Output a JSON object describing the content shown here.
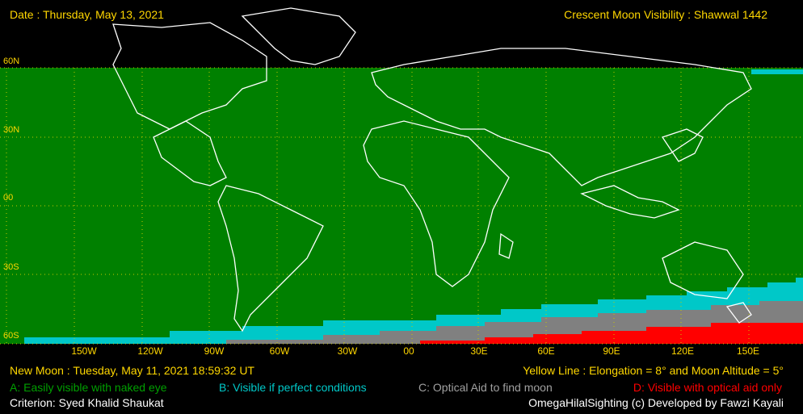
{
  "header": {
    "date": "Date : Thursday, May 13, 2021",
    "title": "Crescent Moon Visibility : Shawwal  1442"
  },
  "map": {
    "lat_labels": [
      "60N",
      "30N",
      "00",
      "30S",
      "60S"
    ],
    "lon_labels": [
      "150W",
      "120W",
      "90W",
      "60W",
      "30W",
      "00",
      "30E",
      "60E",
      "90E",
      "120E",
      "150E"
    ],
    "colors": {
      "zone_a": "#008000",
      "zone_b": "#00c8c8",
      "zone_c": "#808080",
      "zone_d": "#ff0000",
      "grid": "#c8c800",
      "coast": "#ffffff"
    }
  },
  "footer": {
    "new_moon": "New Moon : Tuesday, May 11, 2021  18:59:32  UT",
    "yellow_line": "Yellow Line : Elongation = 8° and Moon Altitude = 5°",
    "legend_a": "A: Easily visible with naked eye",
    "legend_b": "B: Visible if perfect conditions",
    "legend_c": "C: Optical Aid to find moon",
    "legend_d": "D: Visible with optical aid only",
    "criterion": "Criterion: Syed Khalid Shaukat",
    "credit": "OmegaHilalSighting  (c)  Developed by Fawzi Kayali"
  }
}
